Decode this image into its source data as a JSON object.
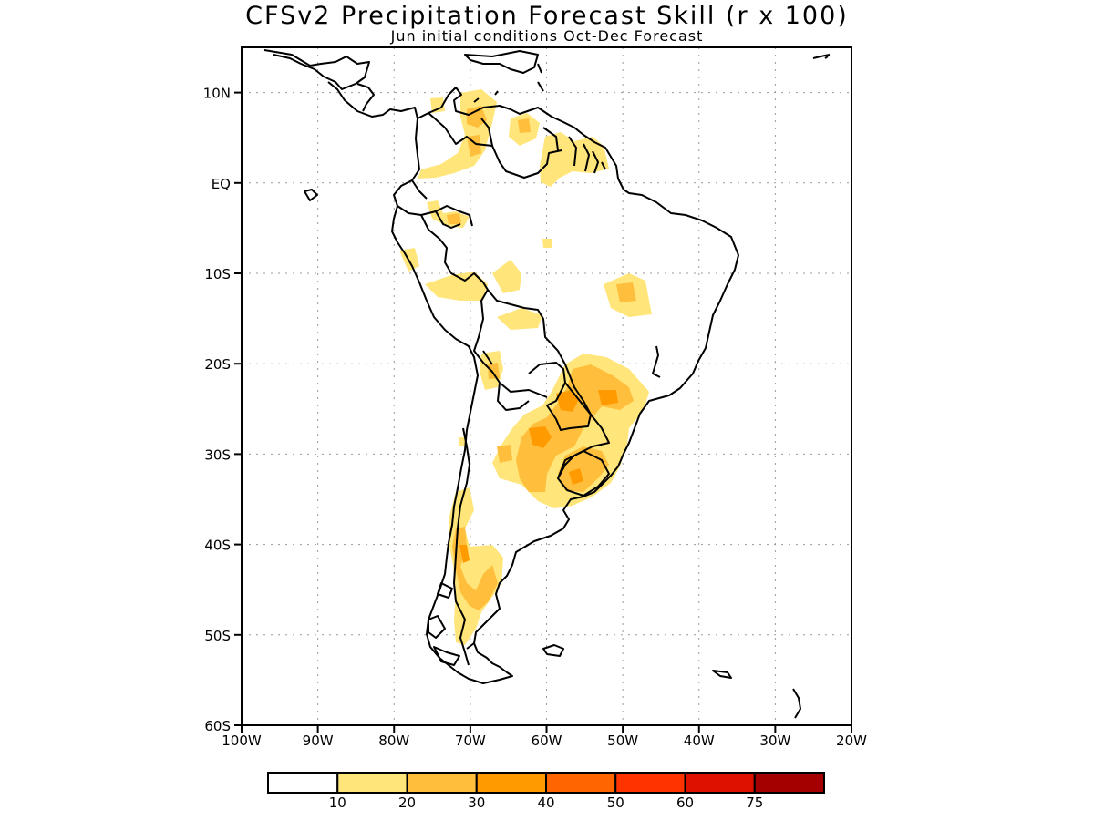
{
  "title": "CFSv2 Precipitation Forecast Skill (r x 100)",
  "subtitle": "Jun initial conditions  Oct-Dec Forecast",
  "map": {
    "lon_range": [
      -100,
      -20
    ],
    "lat_range": [
      -60,
      15
    ],
    "lat_labels": [
      "10N",
      "EQ",
      "10S",
      "20S",
      "30S",
      "40S",
      "50S",
      "60S"
    ],
    "lat_values": [
      10,
      0,
      -10,
      -20,
      -30,
      -40,
      -50,
      -60
    ],
    "lon_labels": [
      "100W",
      "90W",
      "80W",
      "70W",
      "60W",
      "50W",
      "40W",
      "30W",
      "20W"
    ],
    "lon_values": [
      -100,
      -90,
      -80,
      -70,
      -60,
      -50,
      -40,
      -30,
      -20
    ],
    "grid": "dotted"
  },
  "colorbar": {
    "colors": [
      "#ffffff",
      "#ffe57a",
      "#ffbe3c",
      "#ff9a00",
      "#ff6500",
      "#ff3300",
      "#dd1100",
      "#a50000"
    ],
    "labels": [
      "10",
      "20",
      "30",
      "40",
      "50",
      "60",
      "75"
    ]
  }
}
